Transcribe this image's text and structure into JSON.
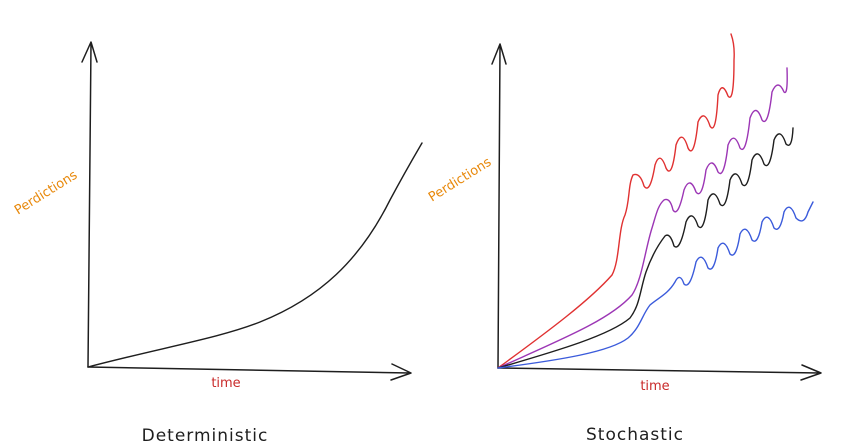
{
  "panels": [
    {
      "title": "Deterministic",
      "y_label": "Perdictions",
      "x_label": "time"
    },
    {
      "title": "Stochastic",
      "y_label": "Perdictions",
      "x_label": "time"
    }
  ]
}
